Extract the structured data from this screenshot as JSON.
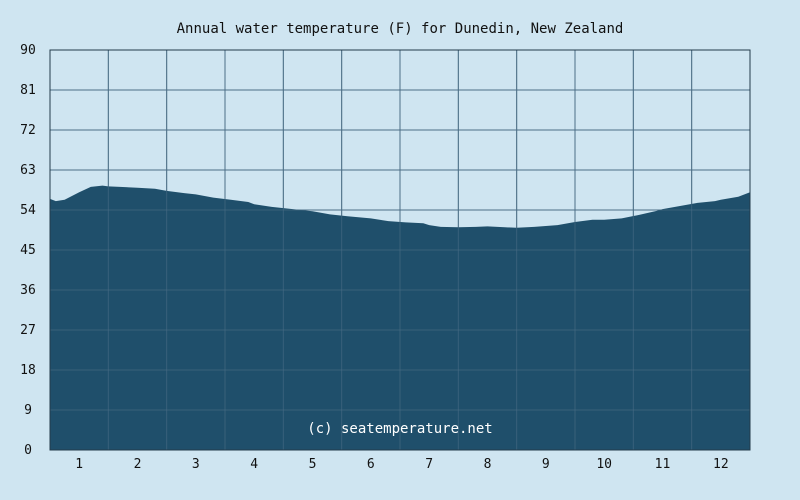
{
  "chart_data": {
    "type": "area",
    "title": "Annual water temperature (F) for Dunedin, New Zealand",
    "xlabel": "",
    "ylabel": "",
    "x_ticks": [
      "1",
      "2",
      "3",
      "4",
      "5",
      "6",
      "7",
      "8",
      "9",
      "10",
      "11",
      "12"
    ],
    "y_ticks": [
      "0",
      "9",
      "18",
      "27",
      "36",
      "45",
      "54",
      "63",
      "72",
      "81",
      "90"
    ],
    "ylim": [
      0,
      90
    ],
    "xlim": [
      0.5,
      12.5
    ],
    "grid": true,
    "watermark": "(c) seatemperature.net",
    "colors": {
      "background": "#cfe5f1",
      "fill": "#1f4f6b",
      "grid": "#4d6f86",
      "axis": "#233b4b"
    },
    "series": [
      {
        "x": [
          0.5,
          0.6,
          0.75,
          1.0,
          1.2,
          1.4,
          1.5,
          1.7,
          2.0,
          2.3,
          2.5,
          2.8,
          3.0,
          3.3,
          3.6,
          3.9,
          4.0,
          4.3,
          4.6,
          5.0,
          5.3,
          5.6,
          6.0,
          6.3,
          6.6,
          6.9,
          7.0,
          7.2,
          7.5,
          7.8,
          8.0,
          8.3,
          8.5,
          8.8,
          9.0,
          9.2,
          9.5,
          9.8,
          10.0,
          10.3,
          10.6,
          10.9,
          11.0,
          11.3,
          11.6,
          11.9,
          12.0,
          12.3,
          12.5
        ],
        "y": [
          56.5,
          56.0,
          56.3,
          58.0,
          59.2,
          59.5,
          59.3,
          59.2,
          59.0,
          58.8,
          58.3,
          57.8,
          57.5,
          56.8,
          56.3,
          55.8,
          55.3,
          54.7,
          54.3,
          53.7,
          53.0,
          52.6,
          52.1,
          51.5,
          51.2,
          51.0,
          50.6,
          50.2,
          50.1,
          50.2,
          50.3,
          50.1,
          50.0,
          50.2,
          50.4,
          50.6,
          51.3,
          51.8,
          51.8,
          52.1,
          52.9,
          53.8,
          54.2,
          54.9,
          55.6,
          56.0,
          56.3,
          57.0,
          58.0
        ]
      }
    ]
  }
}
